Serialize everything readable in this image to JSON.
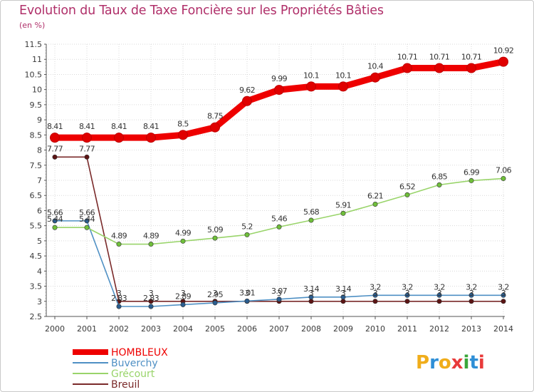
{
  "title": "Evolution du Taux de Taxe Foncière sur les Propriétés Bâties",
  "unit": "(en %)",
  "brand": "Proxiti",
  "colors": {
    "title": "#b0306a",
    "axis_text": "#3a3a3a",
    "grid": "#d9d9d9",
    "axis": "#555555"
  },
  "chart_data": {
    "type": "line",
    "title": "Evolution du Taux de Taxe Foncière sur les Propriétés Bâties",
    "ylabel": "(en %)",
    "xlabel": "",
    "ylim": [
      2.5,
      11.5
    ],
    "yticks": [
      "2.5",
      "3",
      "3.5",
      "4",
      "4.5",
      "5",
      "5.5",
      "6",
      "6.5",
      "7",
      "7.5",
      "8",
      "8.5",
      "9",
      "9.5",
      "10",
      "10.5",
      "11",
      "11.5"
    ],
    "categories": [
      "2000",
      "2001",
      "2002",
      "2003",
      "2004",
      "2005",
      "2006",
      "2007",
      "2008",
      "2009",
      "2010",
      "2011",
      "2012",
      "2013",
      "2014"
    ],
    "legend_position": "bottom-left",
    "grid": true,
    "series": [
      {
        "name": "Breuil",
        "color": "#7a2a2a",
        "marker": "#5b1414",
        "bold": false,
        "values": [
          7.77,
          7.77,
          3,
          3,
          3,
          3,
          3,
          3,
          3,
          3,
          3,
          3,
          3,
          3,
          3
        ],
        "labels": [
          "7.77",
          "7.77",
          "3",
          "3",
          "3",
          "3",
          "3",
          "3",
          "3",
          "3",
          "3",
          "3",
          "3",
          "3",
          "3"
        ]
      },
      {
        "name": "Buverchy",
        "color": "#4f90c4",
        "marker": "#2a5d8f",
        "bold": false,
        "values": [
          5.66,
          5.66,
          2.83,
          2.83,
          2.89,
          2.95,
          3.01,
          3.07,
          3.14,
          3.14,
          3.2,
          3.2,
          3.2,
          3.2,
          3.2
        ],
        "labels": [
          "5.66",
          "5.66",
          "2.83",
          "2.83",
          "2.89",
          "2.95",
          "3.01",
          "3.07",
          "3.14",
          "3.14",
          "3.2",
          "3.2",
          "3.2",
          "3.2",
          "3.2"
        ]
      },
      {
        "name": "Grécourt",
        "color": "#99d46a",
        "marker": "#6fbf3a",
        "bold": false,
        "values": [
          5.44,
          5.44,
          4.89,
          4.89,
          4.99,
          5.09,
          5.2,
          5.46,
          5.68,
          5.91,
          6.21,
          6.52,
          6.85,
          6.99,
          7.06
        ],
        "labels": [
          "5.44",
          "5.44",
          "4.89",
          "4.89",
          "4.99",
          "5.09",
          "5.2",
          "5.46",
          "5.68",
          "5.91",
          "6.21",
          "6.52",
          "6.85",
          "6.99",
          "7.06"
        ]
      },
      {
        "name": "HOMBLEUX",
        "color": "#ee0000",
        "marker": "#e00000",
        "bold": true,
        "values": [
          8.41,
          8.41,
          8.41,
          8.41,
          8.5,
          8.75,
          9.62,
          9.99,
          10.1,
          10.1,
          10.4,
          10.71,
          10.71,
          10.71,
          10.92
        ],
        "labels": [
          "8.41",
          "8.41",
          "8.41",
          "8.41",
          "8.5",
          "8.75",
          "9.62",
          "9.99",
          "10.1",
          "10.1",
          "10.4",
          "10.71",
          "10.71",
          "10.71",
          "10.92"
        ]
      }
    ],
    "legend": [
      "HOMBLEUX",
      "Buverchy",
      "Grécourt",
      "Breuil"
    ]
  }
}
